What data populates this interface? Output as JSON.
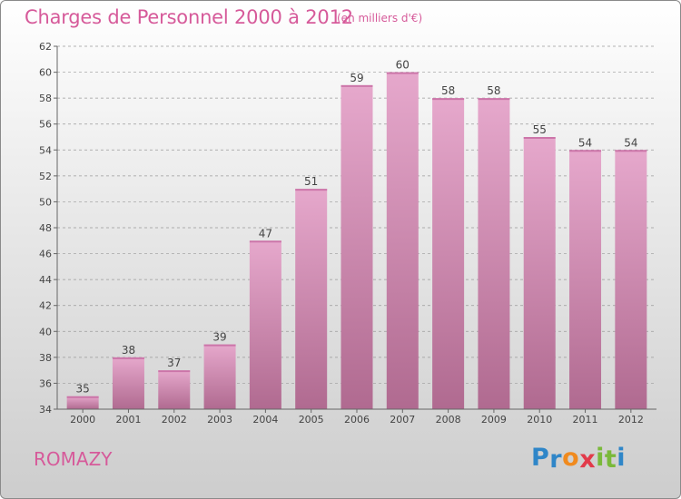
{
  "title": "Charges de Personnel 2000 à 2012",
  "subtitle": "(en milliers d'€)",
  "commune": "ROMAZY",
  "logo": {
    "letters": [
      "P",
      "r",
      "o",
      "x",
      "i",
      "t",
      "i"
    ],
    "colors": [
      "#2f86c8",
      "#2f86c8",
      "#f08a1e",
      "#e23a4a",
      "#7ab93a",
      "#7ab93a",
      "#2f86c8"
    ]
  },
  "colors": {
    "accent": "#d65a9a",
    "bar_top": "#e6a8cc",
    "bar_bottom": "#b06a90",
    "grid": "#9a9a9a"
  },
  "chart_data": {
    "type": "bar",
    "categories": [
      "2000",
      "2001",
      "2002",
      "2003",
      "2004",
      "2005",
      "2006",
      "2007",
      "2008",
      "2009",
      "2010",
      "2011",
      "2012"
    ],
    "values": [
      35,
      38,
      37,
      39,
      47,
      51,
      59,
      60,
      58,
      58,
      55,
      54,
      54
    ],
    "ylim": [
      34,
      62
    ],
    "yticks": [
      34,
      36,
      38,
      40,
      42,
      44,
      46,
      48,
      50,
      52,
      54,
      56,
      58,
      60,
      62
    ],
    "grid": "horizontal dashed",
    "legend": "none",
    "data_labels": true
  }
}
